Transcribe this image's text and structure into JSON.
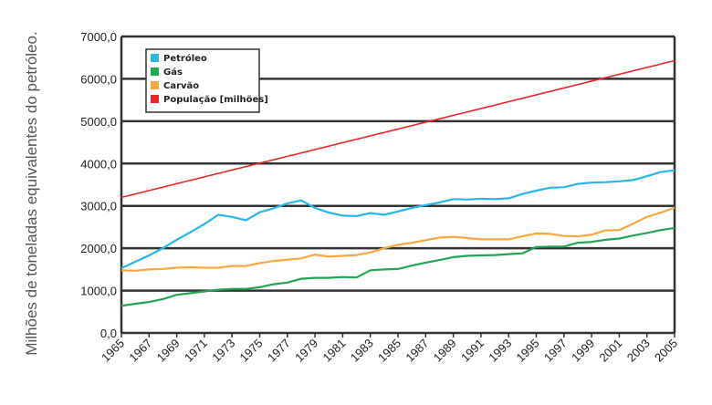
{
  "chart_data": {
    "type": "line",
    "title": "",
    "xlabel": "",
    "ylabel": "Milhões de toneladas equivalentes do petróleo.",
    "ylim": [
      0,
      7000
    ],
    "xlim": [
      1965,
      2005
    ],
    "y_ticks": [
      "0,0",
      "1000,0",
      "2000,0",
      "3000,0",
      "4000,0",
      "5000,0",
      "6000,0",
      "7000,0"
    ],
    "y_tick_values": [
      0,
      1000,
      2000,
      3000,
      4000,
      5000,
      6000,
      7000
    ],
    "x_ticks": [
      "1965",
      "1967",
      "1969",
      "1971",
      "1973",
      "1975",
      "1977",
      "1979",
      "1981",
      "1983",
      "1985",
      "1987",
      "1989",
      "1991",
      "1993",
      "1995",
      "1997",
      "1999",
      "2001",
      "2003",
      "2005"
    ],
    "grid": "horizontal",
    "legend_position": "top-left",
    "series": [
      {
        "name": "Petróleo",
        "color": "#29b6e8",
        "x": [
          1965,
          1966,
          1967,
          1968,
          1969,
          1970,
          1971,
          1972,
          1973,
          1974,
          1975,
          1976,
          1977,
          1978,
          1979,
          1980,
          1981,
          1982,
          1983,
          1984,
          1985,
          1986,
          1987,
          1988,
          1989,
          1990,
          1991,
          1992,
          1993,
          1994,
          1995,
          1996,
          1997,
          1998,
          1999,
          2000,
          2001,
          2002,
          2003,
          2004,
          2005
        ],
        "y": [
          1530,
          1680,
          1830,
          2000,
          2200,
          2380,
          2570,
          2790,
          2740,
          2660,
          2850,
          2940,
          3060,
          3130,
          2950,
          2840,
          2770,
          2760,
          2830,
          2790,
          2870,
          2950,
          3020,
          3080,
          3160,
          3150,
          3170,
          3160,
          3180,
          3280,
          3360,
          3430,
          3440,
          3520,
          3550,
          3560,
          3580,
          3610,
          3700,
          3800,
          3840
        ]
      },
      {
        "name": "Gás",
        "color": "#21a654",
        "x": [
          1965,
          1966,
          1967,
          1968,
          1969,
          1970,
          1971,
          1972,
          1973,
          1974,
          1975,
          1976,
          1977,
          1978,
          1979,
          1980,
          1981,
          1982,
          1983,
          1984,
          1985,
          1986,
          1987,
          1988,
          1989,
          1990,
          1991,
          1992,
          1993,
          1994,
          1995,
          1996,
          1997,
          1998,
          1999,
          2000,
          2001,
          2002,
          2003,
          2004,
          2005
        ],
        "y": [
          640,
          690,
          730,
          800,
          900,
          940,
          980,
          1020,
          1040,
          1040,
          1080,
          1150,
          1190,
          1280,
          1300,
          1300,
          1320,
          1310,
          1480,
          1500,
          1510,
          1590,
          1660,
          1720,
          1790,
          1820,
          1830,
          1840,
          1860,
          1880,
          2030,
          2040,
          2040,
          2130,
          2150,
          2200,
          2230,
          2300,
          2360,
          2430,
          2480
        ]
      },
      {
        "name": "Carvão",
        "color": "#f7a941",
        "x": [
          1965,
          1966,
          1967,
          1968,
          1969,
          1970,
          1971,
          1972,
          1973,
          1974,
          1975,
          1976,
          1977,
          1978,
          1979,
          1980,
          1981,
          1982,
          1983,
          1984,
          1985,
          1986,
          1987,
          1988,
          1989,
          1990,
          1991,
          1992,
          1993,
          1994,
          1995,
          1996,
          1997,
          1998,
          1999,
          2000,
          2001,
          2002,
          2003,
          2004,
          2005
        ],
        "y": [
          1480,
          1470,
          1500,
          1510,
          1540,
          1550,
          1540,
          1540,
          1580,
          1580,
          1650,
          1700,
          1730,
          1760,
          1850,
          1800,
          1820,
          1840,
          1900,
          2000,
          2080,
          2130,
          2190,
          2250,
          2270,
          2240,
          2210,
          2210,
          2210,
          2280,
          2350,
          2340,
          2290,
          2280,
          2320,
          2420,
          2430,
          2580,
          2740,
          2840,
          2960
        ]
      },
      {
        "name": "População [milhões]",
        "color": "#e8262a",
        "x": [
          1965,
          2005
        ],
        "y": [
          3200,
          6430
        ]
      }
    ]
  }
}
